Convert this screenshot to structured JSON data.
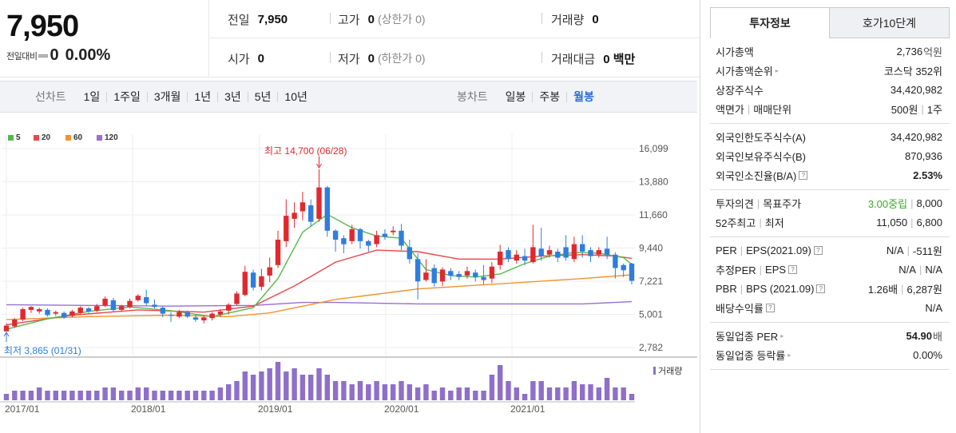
{
  "quote": {
    "price": "7,950",
    "change_label": "전일대비",
    "change_value": "0",
    "change_rate": "0.00%",
    "prev_close_label": "전일",
    "prev_close": "7,950",
    "high_label": "고가",
    "high": "0",
    "upper_limit": "(상한가 0)",
    "volume_label": "거래량",
    "volume": "0",
    "open_label": "시가",
    "open": "0",
    "low_label": "저가",
    "low": "0",
    "lower_limit": "(하한가 0)",
    "amount_label": "거래대금",
    "amount": "0 백만"
  },
  "period_bar": {
    "line_label": "선차트",
    "line_tabs": [
      "1일",
      "1주일",
      "3개월",
      "1년",
      "3년",
      "5년",
      "10년"
    ],
    "candle_label": "봉차트",
    "candle_tabs": [
      "일봉",
      "주봉",
      "월봉"
    ],
    "candle_active": "월봉"
  },
  "legend": [
    {
      "label": "5",
      "color": "#55b94a"
    },
    {
      "label": "20",
      "color": "#e8464b"
    },
    {
      "label": "60",
      "color": "#f2922d"
    },
    {
      "label": "120",
      "color": "#9a6fd2"
    }
  ],
  "annotations": {
    "high": "최고 14,700 (06/28)",
    "low": "최저 3,865 (01/31)"
  },
  "volume_label": "거래량",
  "colors": {
    "up": "#e0292f",
    "down": "#2f7ddf",
    "ma5": "#55b94a",
    "ma20": "#e8464b",
    "ma60": "#f2922d",
    "ma120": "#9a6fd2",
    "volume": "#8e6fc9",
    "accent": "#2b6fd6"
  },
  "chart_data": {
    "type": "candlestick",
    "y_ticks": [
      "16,099",
      "13,880",
      "11,660",
      "9,440",
      "7,221",
      "5,001",
      "2,782"
    ],
    "x_ticks": [
      "2017/01",
      "2018/01",
      "2019/01",
      "2020/01",
      "2021/01"
    ],
    "ylim": [
      2782,
      16099
    ],
    "candles": [
      [
        3865,
        4250,
        3865,
        4400
      ],
      [
        4200,
        4650,
        4100,
        4750
      ],
      [
        4650,
        5350,
        4550,
        5450
      ],
      [
        5300,
        5500,
        5100,
        5550
      ],
      [
        5200,
        5350,
        5050,
        5450
      ],
      [
        5300,
        4950,
        4850,
        5400
      ],
      [
        5050,
        5150,
        4900,
        5250
      ],
      [
        5100,
        4800,
        4700,
        5200
      ],
      [
        4900,
        5200,
        4800,
        5300
      ],
      [
        5100,
        5450,
        5000,
        5550
      ],
      [
        5400,
        5200,
        5100,
        5500
      ],
      [
        5250,
        5550,
        5150,
        5700
      ],
      [
        5600,
        6050,
        5500,
        6200
      ],
      [
        5950,
        5300,
        5200,
        6100
      ],
      [
        5300,
        5550,
        5200,
        5650
      ],
      [
        5500,
        5900,
        5400,
        6050
      ],
      [
        5950,
        6250,
        5850,
        6350
      ],
      [
        6150,
        5750,
        5600,
        6650
      ],
      [
        5650,
        5500,
        5400,
        6000
      ],
      [
        5450,
        5050,
        4800,
        5550
      ],
      [
        4950,
        4900,
        4500,
        5150
      ],
      [
        4850,
        5150,
        4750,
        5300
      ],
      [
        5150,
        4850,
        4750,
        5250
      ],
      [
        4800,
        4650,
        4500,
        5000
      ],
      [
        4600,
        4800,
        4400,
        4900
      ],
      [
        4750,
        5050,
        4600,
        5150
      ],
      [
        5000,
        5200,
        4850,
        5350
      ],
      [
        5250,
        5650,
        5000,
        5750
      ],
      [
        5700,
        6400,
        5600,
        6550
      ],
      [
        6300,
        7850,
        6200,
        8250
      ],
      [
        7800,
        6800,
        6600,
        8000
      ],
      [
        6850,
        7550,
        6600,
        8050
      ],
      [
        7600,
        8150,
        7150,
        8800
      ],
      [
        8300,
        10000,
        8100,
        10600
      ],
      [
        9900,
        11600,
        9500,
        12700
      ],
      [
        11400,
        11800,
        10800,
        12500
      ],
      [
        11900,
        12500,
        11300,
        13200
      ],
      [
        12300,
        11200,
        10900,
        12700
      ],
      [
        11400,
        13500,
        11200,
        14700
      ],
      [
        13500,
        10600,
        10200,
        13600
      ],
      [
        10600,
        10000,
        9200,
        10700
      ],
      [
        10100,
        9700,
        9100,
        10300
      ],
      [
        9900,
        10700,
        9700,
        11000
      ],
      [
        10700,
        9900,
        9400,
        10800
      ],
      [
        9900,
        9600,
        9200,
        10000
      ],
      [
        9700,
        10300,
        9500,
        10600
      ],
      [
        10400,
        10200,
        10000,
        10700
      ],
      [
        10500,
        10600,
        10300,
        10900
      ],
      [
        10600,
        9600,
        9300,
        11050
      ],
      [
        9500,
        8700,
        8400,
        10000
      ],
      [
        8700,
        7200,
        6000,
        9100
      ],
      [
        7300,
        7800,
        7200,
        8700
      ],
      [
        8100,
        7100,
        6850,
        8350
      ],
      [
        7200,
        8000,
        6900,
        8150
      ],
      [
        7900,
        7600,
        7300,
        8100
      ],
      [
        7700,
        7500,
        7300,
        7900
      ],
      [
        7600,
        7900,
        7400,
        8200
      ],
      [
        7800,
        7500,
        7200,
        8000
      ],
      [
        7500,
        7300,
        7000,
        8300
      ],
      [
        7400,
        8200,
        7100,
        8500
      ],
      [
        8300,
        9200,
        8000,
        9650
      ],
      [
        9300,
        8700,
        8500,
        9500
      ],
      [
        8600,
        9000,
        8400,
        9300
      ],
      [
        8900,
        8600,
        8300,
        9400
      ],
      [
        8500,
        9500,
        8400,
        11000
      ],
      [
        9400,
        8900,
        8600,
        10800
      ],
      [
        9000,
        9300,
        8800,
        9600
      ],
      [
        9200,
        8800,
        8500,
        9400
      ],
      [
        9500,
        8800,
        8600,
        10300
      ],
      [
        8700,
        9700,
        8500,
        10200
      ],
      [
        9700,
        9200,
        8800,
        10300
      ],
      [
        9300,
        8900,
        8500,
        9500
      ],
      [
        9000,
        9300,
        8800,
        9500
      ],
      [
        9400,
        9000,
        8700,
        10200
      ],
      [
        9000,
        8100,
        7400,
        9150
      ],
      [
        8300,
        7950,
        7500,
        8400
      ],
      [
        8400,
        7250,
        7000,
        8450
      ]
    ],
    "ma5": [
      [
        0,
        4000
      ],
      [
        5,
        4700
      ],
      [
        10,
        5200
      ],
      [
        15,
        5500
      ],
      [
        20,
        5250
      ],
      [
        25,
        4850
      ],
      [
        30,
        5450
      ],
      [
        33,
        7400
      ],
      [
        36,
        10500
      ],
      [
        39,
        11700
      ],
      [
        42,
        10800
      ],
      [
        45,
        10250
      ],
      [
        48,
        10100
      ],
      [
        51,
        8000
      ],
      [
        54,
        7600
      ],
      [
        57,
        7500
      ],
      [
        60,
        7700
      ],
      [
        63,
        8400
      ],
      [
        66,
        8900
      ],
      [
        69,
        9150
      ],
      [
        72,
        9100
      ],
      [
        75,
        8800
      ],
      [
        76,
        8350
      ]
    ],
    "ma20": [
      [
        0,
        4300
      ],
      [
        8,
        4950
      ],
      [
        16,
        5300
      ],
      [
        24,
        5150
      ],
      [
        30,
        5550
      ],
      [
        35,
        6900
      ],
      [
        40,
        8500
      ],
      [
        45,
        9300
      ],
      [
        50,
        9200
      ],
      [
        55,
        8700
      ],
      [
        60,
        8700
      ],
      [
        65,
        8900
      ],
      [
        70,
        9000
      ],
      [
        74,
        8900
      ],
      [
        76,
        8750
      ]
    ],
    "ma60": [
      [
        0,
        4650
      ],
      [
        10,
        4850
      ],
      [
        20,
        4950
      ],
      [
        27,
        4850
      ],
      [
        32,
        5100
      ],
      [
        40,
        6000
      ],
      [
        50,
        6700
      ],
      [
        60,
        7050
      ],
      [
        70,
        7400
      ],
      [
        76,
        7650
      ]
    ],
    "ma120": [
      [
        0,
        5650
      ],
      [
        10,
        5600
      ],
      [
        20,
        5550
      ],
      [
        30,
        5600
      ],
      [
        36,
        5800
      ],
      [
        40,
        5800
      ],
      [
        50,
        5700
      ],
      [
        60,
        5700
      ],
      [
        70,
        5700
      ],
      [
        76,
        5850
      ]
    ],
    "volume": [
      2,
      3,
      3,
      3,
      4,
      3,
      3,
      3,
      3,
      3,
      3,
      3,
      4,
      4,
      3,
      3,
      4,
      4,
      3,
      3,
      3,
      3,
      3,
      3,
      3,
      3,
      4,
      5,
      6,
      9,
      8,
      9,
      10,
      12,
      9,
      10,
      8,
      8,
      10,
      8,
      6,
      6,
      5,
      6,
      5,
      6,
      5,
      5,
      6,
      5,
      4,
      5,
      3,
      4,
      3,
      4,
      4,
      3,
      3,
      8,
      11,
      6,
      4,
      2,
      6,
      6,
      4,
      4,
      4,
      6,
      5,
      5,
      4,
      7,
      4,
      4,
      2
    ]
  },
  "info_panel": {
    "tabs": [
      "투자정보",
      "호가10단계"
    ],
    "sections": [
      [
        {
          "k": "시가총액",
          "v": "2,736",
          "unit": "억원"
        },
        {
          "k": "시가총액순위",
          "v": "코스닥 352위",
          "arrow": true
        },
        {
          "k": "상장주식수",
          "v": "34,420,982"
        },
        {
          "k": "액면가",
          "k2": "매매단위",
          "v": "500원",
          "v2": "1주"
        }
      ],
      [
        {
          "k": "외국인한도주식수(A)",
          "v": "34,420,982"
        },
        {
          "k": "외국인보유주식수(B)",
          "v": "870,936"
        },
        {
          "k": "외국인소진율(B/A)",
          "v": "2.53%",
          "bold": true,
          "help": true
        }
      ],
      [
        {
          "k": "투자의견",
          "k2": "목표주가",
          "v": "3.00중립",
          "v2": "8,000",
          "green": true
        },
        {
          "k": "52주최고",
          "k2": "최저",
          "v": "11,050",
          "v2": "6,800"
        }
      ],
      [
        {
          "k": "PER",
          "k2": "EPS(2021.09)",
          "v": "N/A",
          "v2": "-511원",
          "help": true
        },
        {
          "k": "추정PER",
          "k2": "EPS",
          "v": "N/A",
          "v2": "N/A",
          "help": true
        },
        {
          "k": "PBR",
          "k2": "BPS (2021.09)",
          "v": "1.26배",
          "v2": "6,287원",
          "help": true
        },
        {
          "k": "배당수익률",
          "v": "N/A",
          "help": true
        }
      ],
      [
        {
          "k": "동일업종 PER",
          "v": "54.90",
          "unit": "배",
          "bold": true,
          "arrow": true
        },
        {
          "k": "동일업종 등락률",
          "v": "0.00%",
          "arrow": true
        }
      ]
    ]
  }
}
